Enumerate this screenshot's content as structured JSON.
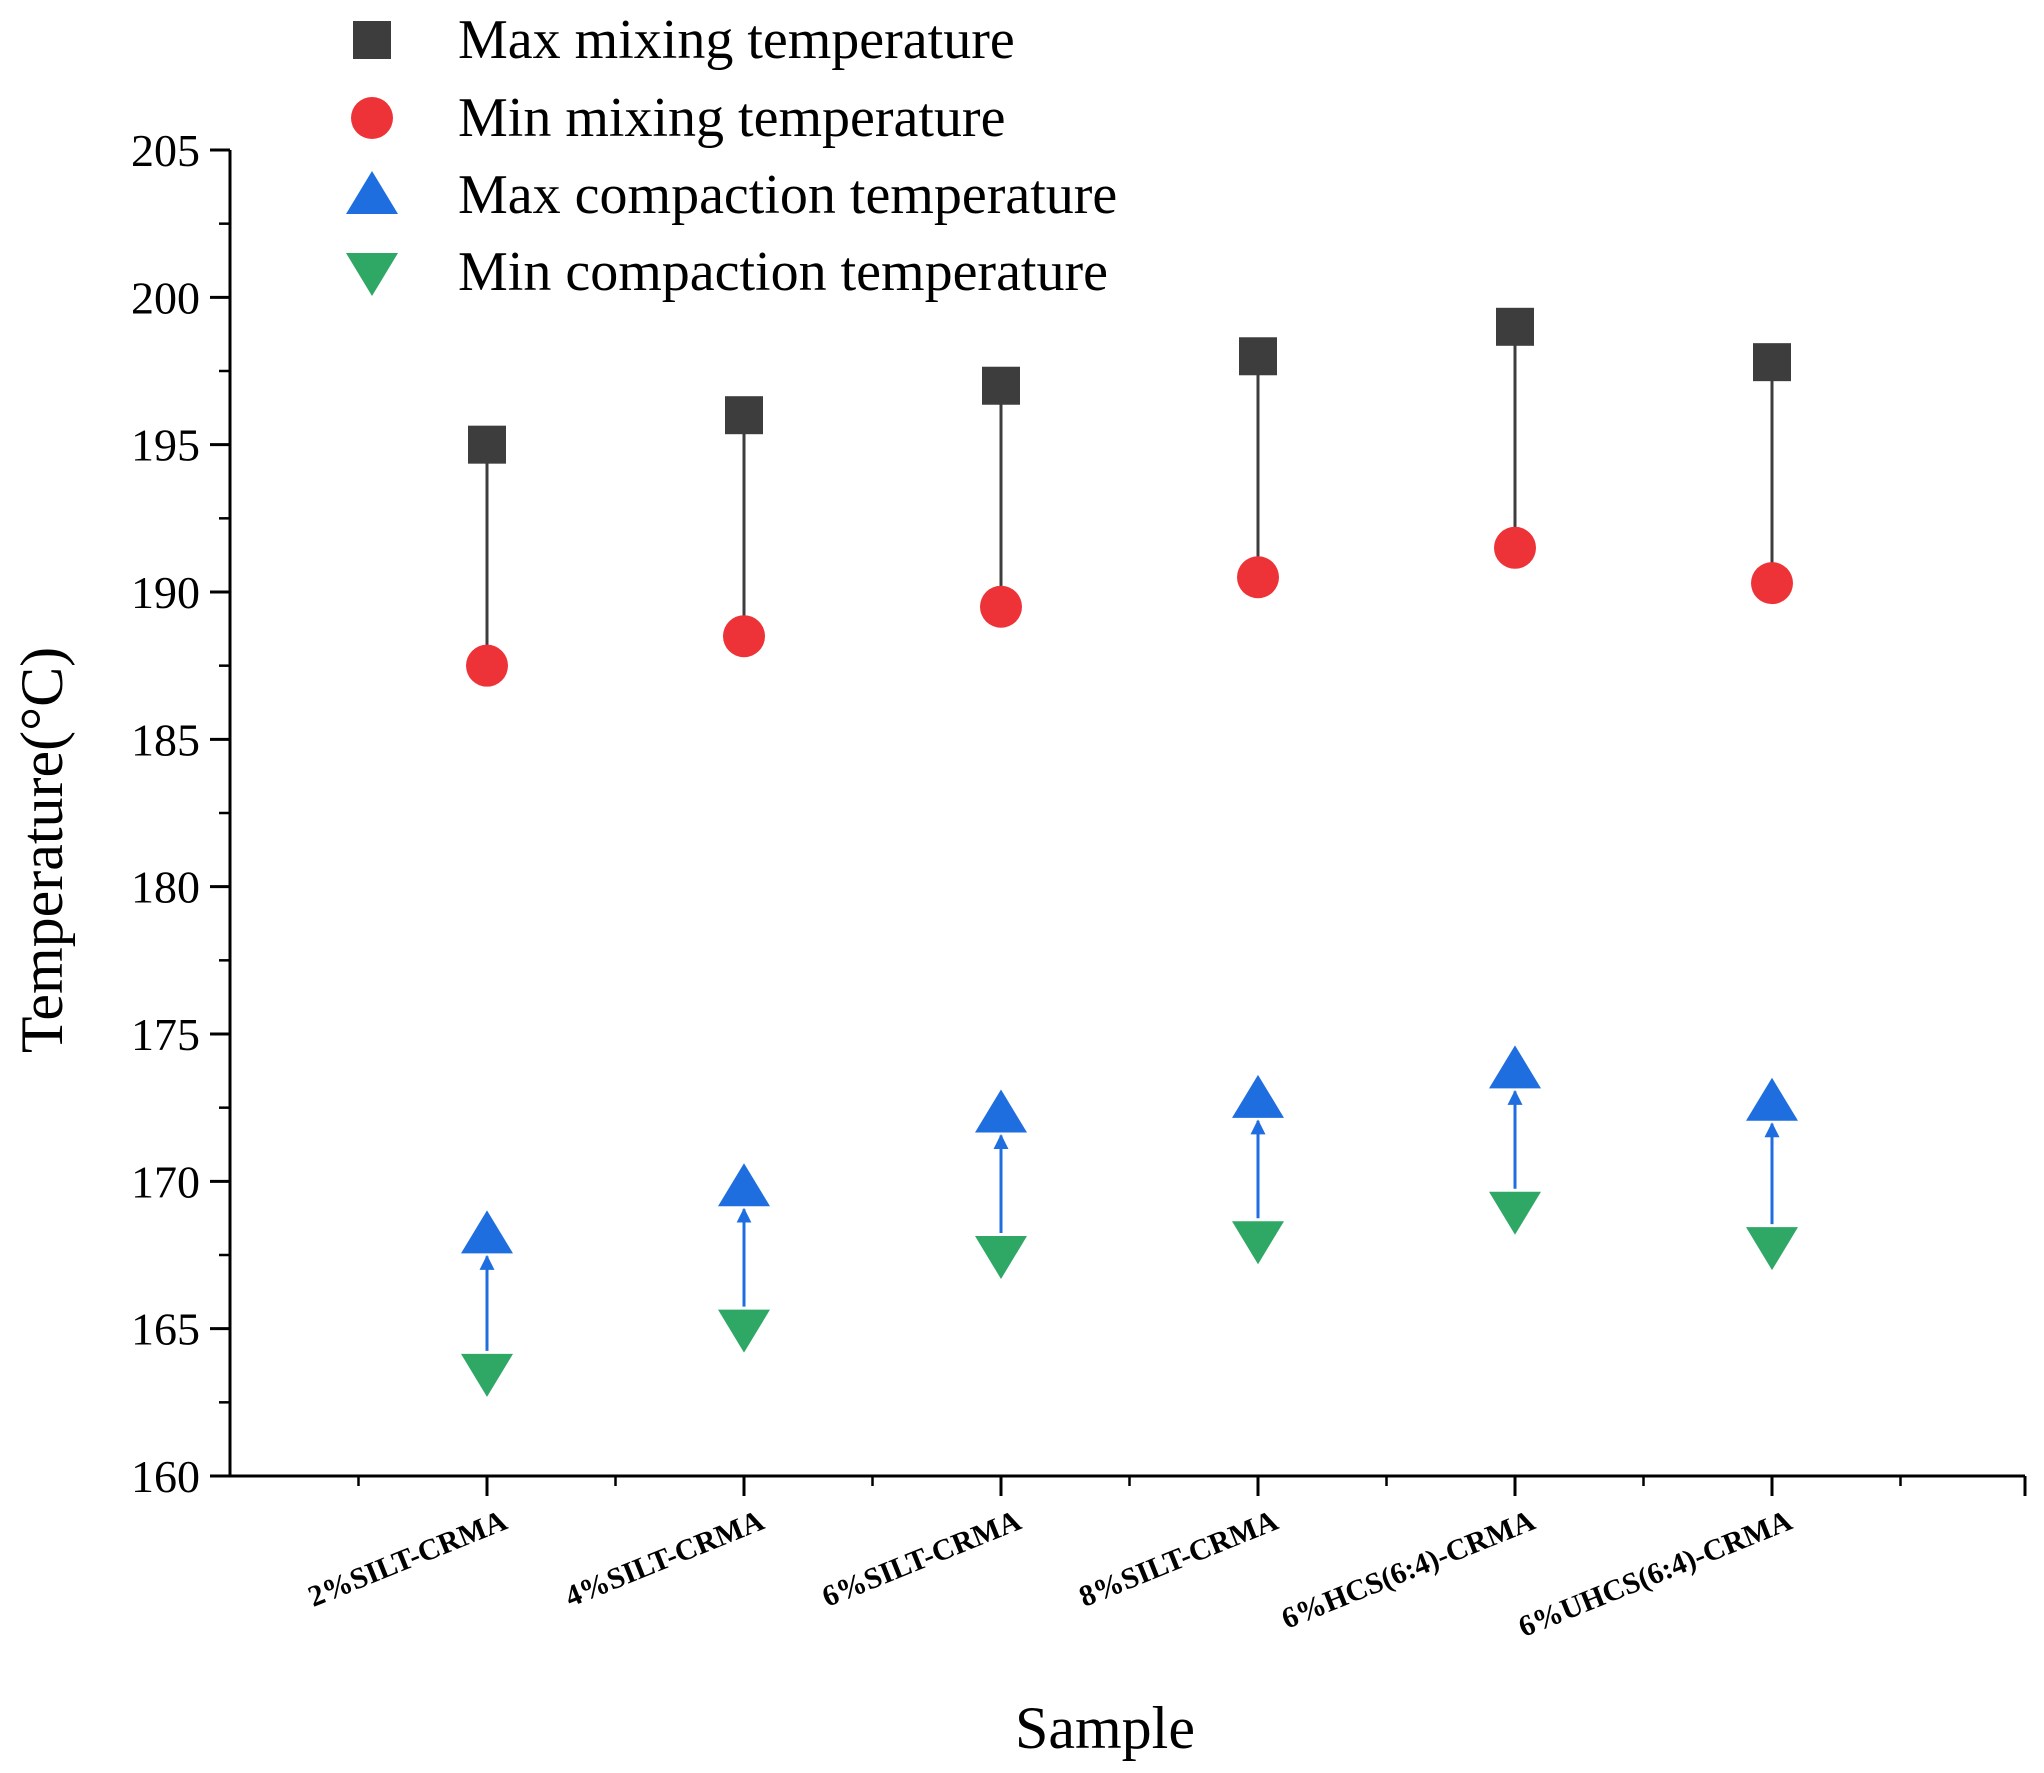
{
  "chart_data": {
    "type": "scatter",
    "title": "",
    "xlabel": "Sample",
    "ylabel": "Temperature(°C)",
    "ylim": [
      160,
      205
    ],
    "yticks": [
      160,
      165,
      170,
      175,
      180,
      185,
      190,
      195,
      200,
      205
    ],
    "categories": [
      "2%SILT-CRMA",
      "4%SILT-CRMA",
      "6%SILT-CRMA",
      "8%SILT-CRMA",
      "6%HCS(6:4)-CRMA",
      "6%UHCS(6:4)-CRMA"
    ],
    "legend_position": "top-left",
    "series": [
      {
        "name": "Max mixing temperature",
        "marker": "square",
        "color": "#3d3d3d",
        "values": [
          195,
          196,
          197,
          198,
          199,
          197.8
        ]
      },
      {
        "name": "Min mixing temperature",
        "marker": "circle",
        "color": "#ee3338",
        "values": [
          187.5,
          188.5,
          189.5,
          190.5,
          191.5,
          190.3
        ]
      },
      {
        "name": "Max compaction temperature",
        "marker": "triangle-up",
        "color": "#1f6ee0",
        "values": [
          168.2,
          169.8,
          172.3,
          172.8,
          173.8,
          172.7
        ]
      },
      {
        "name": "Min compaction temperature",
        "marker": "triangle-down",
        "color": "#2fa866",
        "values": [
          163.5,
          165,
          167.5,
          168,
          169,
          167.8
        ]
      }
    ],
    "connectors": [
      {
        "from": "Max mixing temperature",
        "to": "Min mixing temperature",
        "color": "#3d3d3d",
        "style": "line"
      },
      {
        "from": "Min compaction temperature",
        "to": "Max compaction temperature",
        "color": "#1f6ee0",
        "style": "arrow"
      }
    ]
  }
}
